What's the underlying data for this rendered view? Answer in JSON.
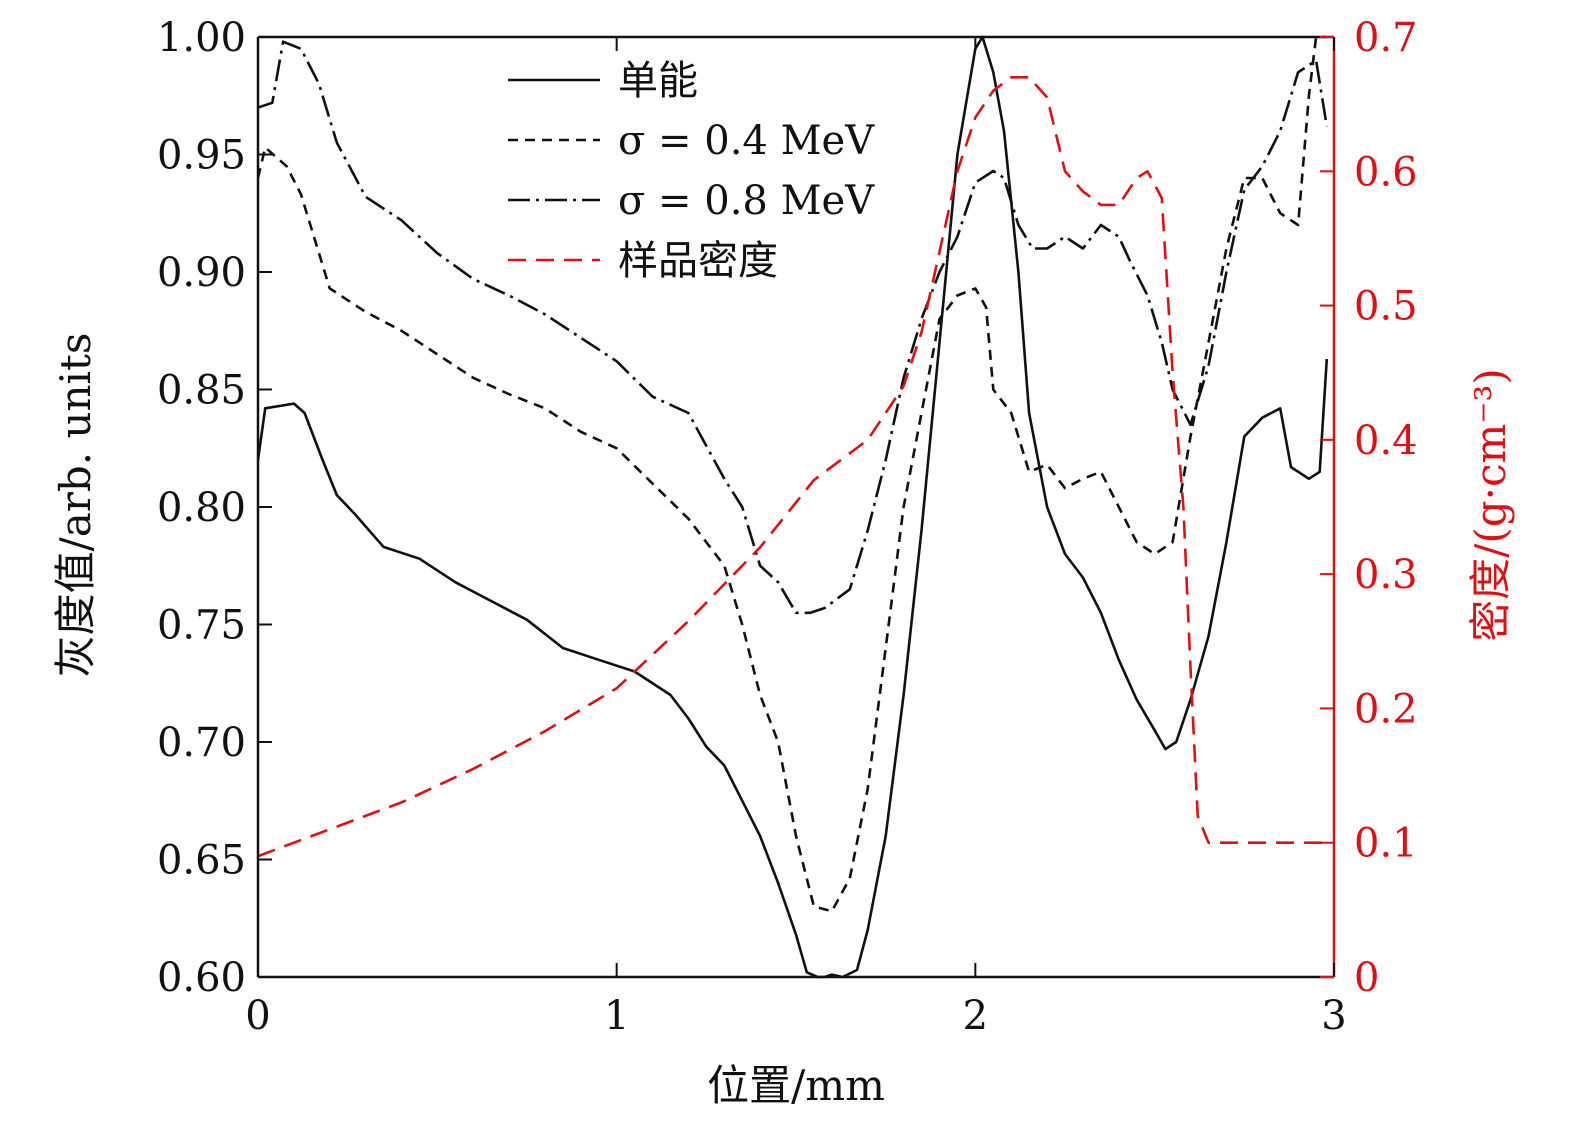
{
  "chart_data": {
    "type": "line",
    "x_label": "位置/mm",
    "y_label": "灰度值/arb. units",
    "y2_label": "密度/(g·cm⁻³)",
    "x_range": [
      0,
      3
    ],
    "y_range": [
      0.6,
      1.0
    ],
    "y2_range": [
      0,
      0.7
    ],
    "x_ticks": [
      "0",
      "1",
      "2",
      "3"
    ],
    "x_tick_values": [
      0,
      1,
      2,
      3
    ],
    "y_ticks": [
      "0.60",
      "0.65",
      "0.70",
      "0.75",
      "0.80",
      "0.85",
      "0.90",
      "0.95",
      "1.00"
    ],
    "y_tick_values": [
      0.6,
      0.65,
      0.7,
      0.75,
      0.8,
      0.85,
      0.9,
      0.95,
      1.0
    ],
    "y2_ticks": [
      "0",
      "0.1",
      "0.2",
      "0.3",
      "0.4",
      "0.5",
      "0.6",
      "0.7"
    ],
    "y2_tick_values": [
      0,
      0.1,
      0.2,
      0.3,
      0.4,
      0.5,
      0.6,
      0.7
    ],
    "grid": false,
    "legend_position": "top-center",
    "colors": {
      "gray": "#111111",
      "density": "#dd1111"
    },
    "series": [
      {
        "name": "单能",
        "axis": "left",
        "style": "solid",
        "x": [
          0,
          0.02,
          0.1,
          0.13,
          0.18,
          0.22,
          0.27,
          0.35,
          0.45,
          0.55,
          0.65,
          0.75,
          0.85,
          0.95,
          1.05,
          1.15,
          1.2,
          1.25,
          1.3,
          1.35,
          1.4,
          1.45,
          1.5,
          1.53,
          1.56,
          1.58,
          1.6,
          1.63,
          1.67,
          1.7,
          1.75,
          1.8,
          1.85,
          1.9,
          1.95,
          2.0,
          2.02,
          2.05,
          2.08,
          2.12,
          2.15,
          2.2,
          2.25,
          2.3,
          2.35,
          2.4,
          2.45,
          2.5,
          2.53,
          2.56,
          2.6,
          2.65,
          2.7,
          2.75,
          2.8,
          2.85,
          2.88,
          2.93,
          2.96,
          2.98
        ],
        "y": [
          0.82,
          0.842,
          0.844,
          0.84,
          0.82,
          0.805,
          0.797,
          0.783,
          0.778,
          0.768,
          0.76,
          0.752,
          0.74,
          0.735,
          0.73,
          0.72,
          0.71,
          0.698,
          0.69,
          0.675,
          0.66,
          0.64,
          0.618,
          0.602,
          0.6,
          0.6,
          0.601,
          0.6,
          0.603,
          0.62,
          0.66,
          0.72,
          0.79,
          0.87,
          0.95,
          0.995,
          1.0,
          0.985,
          0.96,
          0.9,
          0.84,
          0.8,
          0.78,
          0.77,
          0.755,
          0.735,
          0.718,
          0.705,
          0.697,
          0.7,
          0.718,
          0.745,
          0.785,
          0.83,
          0.838,
          0.842,
          0.817,
          0.812,
          0.815,
          0.863
        ]
      },
      {
        "name": "σ = 0.4 MeV",
        "axis": "left",
        "style": "short-dash",
        "x": [
          0,
          0.02,
          0.08,
          0.12,
          0.15,
          0.2,
          0.3,
          0.4,
          0.5,
          0.6,
          0.7,
          0.8,
          0.9,
          1.0,
          1.1,
          1.2,
          1.25,
          1.3,
          1.35,
          1.4,
          1.45,
          1.5,
          1.55,
          1.6,
          1.65,
          1.7,
          1.75,
          1.8,
          1.85,
          1.9,
          1.95,
          2.0,
          2.03,
          2.05,
          2.1,
          2.15,
          2.2,
          2.25,
          2.3,
          2.35,
          2.4,
          2.45,
          2.5,
          2.55,
          2.6,
          2.65,
          2.7,
          2.75,
          2.8,
          2.85,
          2.9,
          2.93,
          2.95,
          2.98
        ],
        "y": [
          0.94,
          0.953,
          0.945,
          0.933,
          0.918,
          0.893,
          0.883,
          0.875,
          0.865,
          0.855,
          0.848,
          0.842,
          0.832,
          0.825,
          0.81,
          0.795,
          0.785,
          0.775,
          0.75,
          0.72,
          0.7,
          0.66,
          0.63,
          0.628,
          0.642,
          0.68,
          0.74,
          0.8,
          0.84,
          0.88,
          0.89,
          0.893,
          0.885,
          0.85,
          0.84,
          0.815,
          0.818,
          0.808,
          0.812,
          0.815,
          0.8,
          0.785,
          0.78,
          0.785,
          0.83,
          0.87,
          0.91,
          0.94,
          0.94,
          0.925,
          0.92,
          0.975,
          1.0,
          1.0
        ]
      },
      {
        "name": "σ = 0.8 MeV",
        "axis": "left",
        "style": "dash-dot",
        "x": [
          0,
          0.04,
          0.07,
          0.12,
          0.17,
          0.22,
          0.3,
          0.4,
          0.5,
          0.6,
          0.7,
          0.8,
          0.9,
          1.0,
          1.1,
          1.2,
          1.3,
          1.35,
          1.4,
          1.45,
          1.5,
          1.54,
          1.58,
          1.65,
          1.7,
          1.75,
          1.8,
          1.85,
          1.9,
          1.95,
          2.0,
          2.05,
          2.08,
          2.12,
          2.16,
          2.2,
          2.25,
          2.3,
          2.35,
          2.4,
          2.43,
          2.48,
          2.52,
          2.55,
          2.6,
          2.65,
          2.7,
          2.75,
          2.8,
          2.85,
          2.9,
          2.95,
          2.98
        ],
        "y": [
          0.97,
          0.972,
          0.998,
          0.995,
          0.98,
          0.955,
          0.932,
          0.922,
          0.908,
          0.897,
          0.89,
          0.882,
          0.872,
          0.862,
          0.847,
          0.84,
          0.812,
          0.8,
          0.775,
          0.768,
          0.755,
          0.755,
          0.757,
          0.765,
          0.79,
          0.82,
          0.855,
          0.88,
          0.9,
          0.915,
          0.938,
          0.943,
          0.94,
          0.92,
          0.91,
          0.91,
          0.915,
          0.91,
          0.92,
          0.915,
          0.905,
          0.89,
          0.87,
          0.85,
          0.835,
          0.86,
          0.9,
          0.935,
          0.945,
          0.96,
          0.985,
          0.99,
          0.962
        ]
      },
      {
        "name": "样品密度",
        "axis": "right",
        "style": "long-dash",
        "x": [
          0,
          0.2,
          0.4,
          0.6,
          0.8,
          1.0,
          1.2,
          1.4,
          1.55,
          1.7,
          1.8,
          1.85,
          1.9,
          1.95,
          2.0,
          2.05,
          2.1,
          2.15,
          2.2,
          2.25,
          2.3,
          2.35,
          2.4,
          2.45,
          2.48,
          2.52,
          2.55,
          2.58,
          2.6,
          2.62,
          2.65,
          2.7,
          2.8,
          2.9,
          2.98
        ],
        "y": [
          0.09,
          0.11,
          0.13,
          0.155,
          0.183,
          0.215,
          0.265,
          0.32,
          0.37,
          0.4,
          0.44,
          0.48,
          0.54,
          0.6,
          0.64,
          0.66,
          0.67,
          0.67,
          0.655,
          0.6,
          0.585,
          0.575,
          0.575,
          0.595,
          0.6,
          0.58,
          0.45,
          0.35,
          0.23,
          0.12,
          0.1,
          0.1,
          0.1,
          0.1,
          0.1
        ]
      }
    ]
  }
}
